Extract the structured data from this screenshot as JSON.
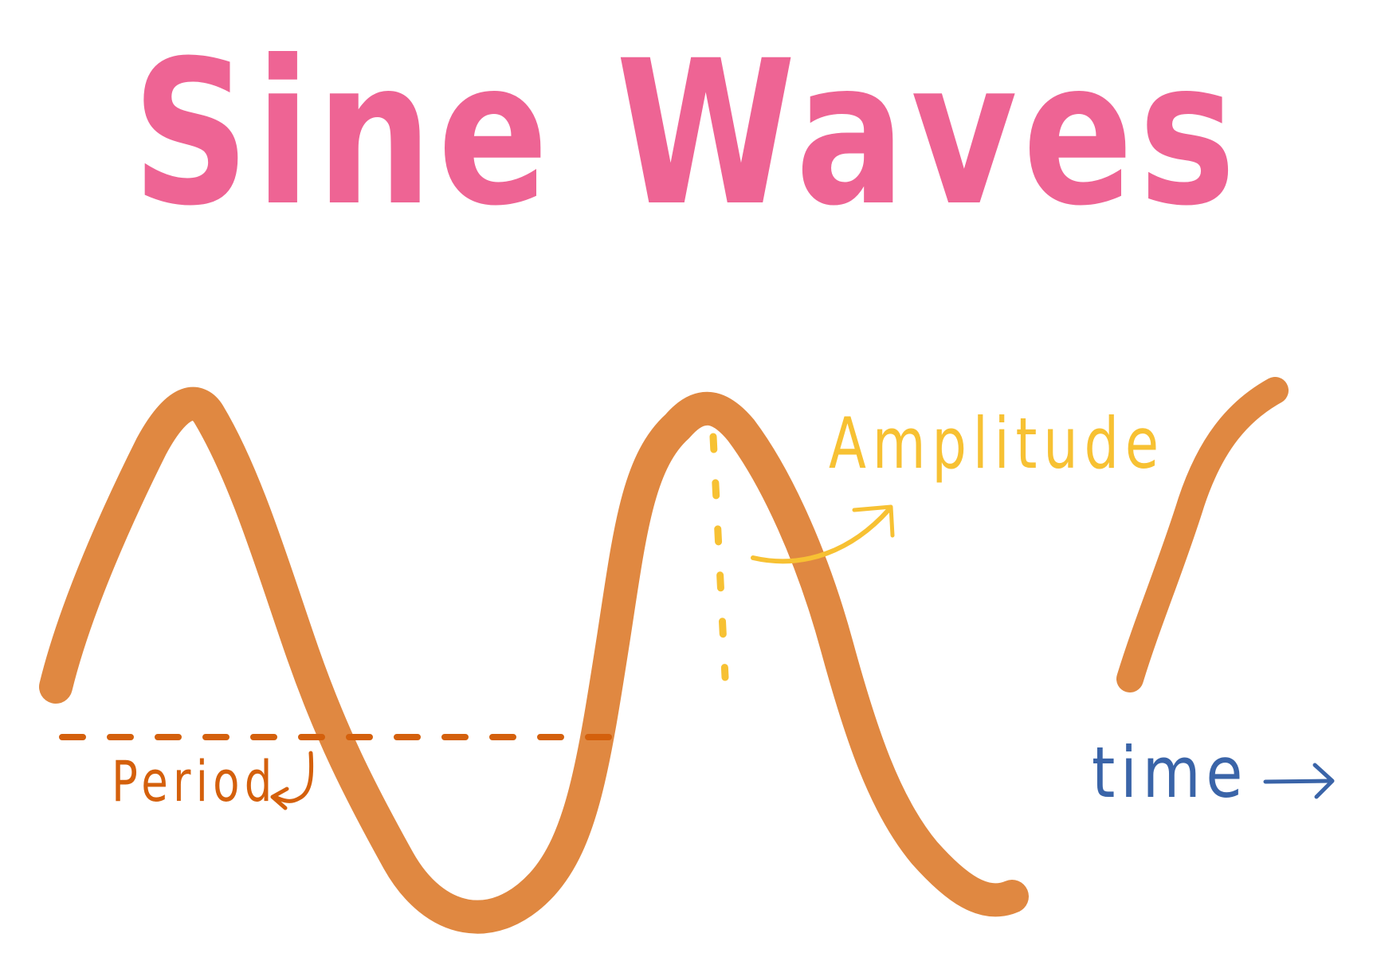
{
  "title": "Sine Waves",
  "labels": {
    "amplitude": "Amplitude",
    "period": "Period",
    "time": "time"
  },
  "colors": {
    "title": "#ee6494",
    "wave": "#e08841",
    "amplitude": "#f7c133",
    "period": "#d4600c",
    "time": "#3a64a8",
    "background": "#ffffff"
  }
}
